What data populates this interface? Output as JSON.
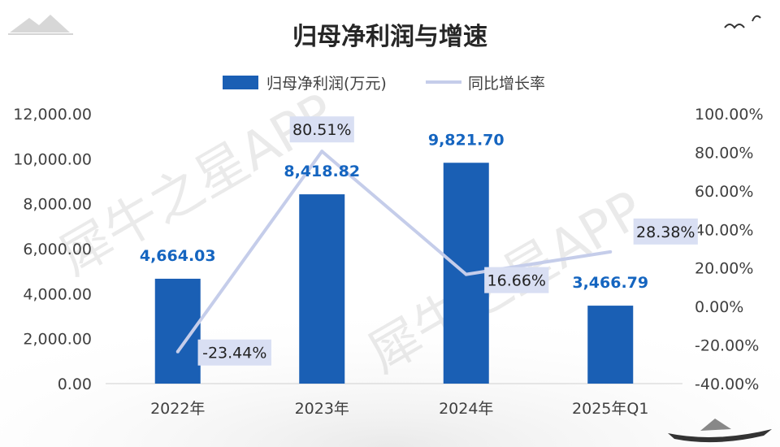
{
  "chart_data": {
    "type": "bar",
    "title": "归母净利润与增速",
    "categories": [
      "2022年",
      "2023年",
      "2024年",
      "2025年Q1"
    ],
    "series": [
      {
        "name": "归母净利润(万元)",
        "type": "bar",
        "axis": "left",
        "values": [
          4664.03,
          8418.82,
          9821.7,
          3466.79
        ],
        "labels": [
          "4,664.03",
          "8,418.82",
          "9,821.70",
          "3,466.79"
        ]
      },
      {
        "name": "同比增长率",
        "type": "line",
        "axis": "right",
        "values": [
          -23.44,
          80.51,
          16.66,
          28.38
        ],
        "labels": [
          "-23.44%",
          "80.51%",
          "16.66%",
          "28.38%"
        ]
      }
    ],
    "y_left": {
      "min": 0,
      "max": 12000,
      "ticks": [
        "0.00",
        "2,000.00",
        "4,000.00",
        "6,000.00",
        "8,000.00",
        "10,000.00",
        "12,000.00"
      ]
    },
    "y_right": {
      "min": -40,
      "max": 100,
      "ticks": [
        "-40.00%",
        "-20.00%",
        "0.00%",
        "20.00%",
        "40.00%",
        "60.00%",
        "80.00%",
        "100.00%"
      ]
    },
    "grid": false,
    "legend_position": "top-center",
    "colors": {
      "bar": "#1a5fb4",
      "line": "#c5cdea",
      "line_label_bg": "#d9dff3",
      "bar_label": "#1565c0"
    },
    "watermark": "犀牛之星APP"
  }
}
